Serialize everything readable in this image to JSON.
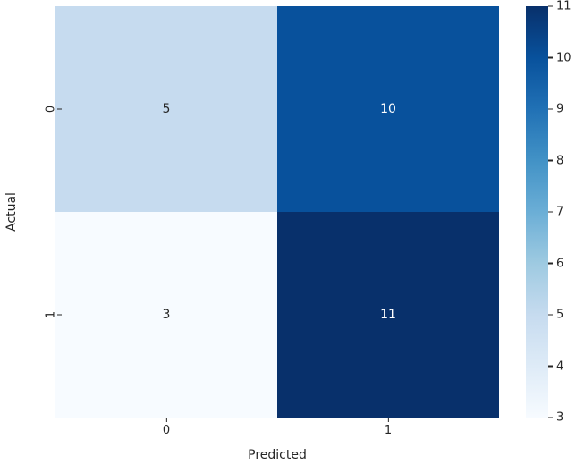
{
  "chart_data": {
    "type": "heatmap",
    "title": "",
    "xlabel": "Predicted",
    "ylabel": "Actual",
    "x_tick_labels": [
      "0",
      "1"
    ],
    "y_tick_labels": [
      "0",
      "1"
    ],
    "matrix": [
      [
        5,
        10
      ],
      [
        3,
        11
      ]
    ],
    "colormap": "Blues",
    "grid": false,
    "cells": [
      {
        "row": "0",
        "col": "0",
        "value": "5",
        "color": "#c6dbef",
        "text_color": "#262626"
      },
      {
        "row": "0",
        "col": "1",
        "value": "10",
        "color": "#08519c",
        "text_color": "#ffffff"
      },
      {
        "row": "1",
        "col": "0",
        "value": "3",
        "color": "#f7fbff",
        "text_color": "#262626"
      },
      {
        "row": "1",
        "col": "1",
        "value": "11",
        "color": "#08306b",
        "text_color": "#ffffff"
      }
    ],
    "colorbar": {
      "position": "right",
      "vmin": 3,
      "vmax": 11,
      "min_color": "#f7fbff",
      "max_color": "#08306b",
      "ticks": [
        "11",
        "10",
        "9",
        "8",
        "7",
        "6",
        "5",
        "4",
        "3"
      ]
    },
    "text_color": "#262626",
    "background_color": "#ffffff"
  }
}
